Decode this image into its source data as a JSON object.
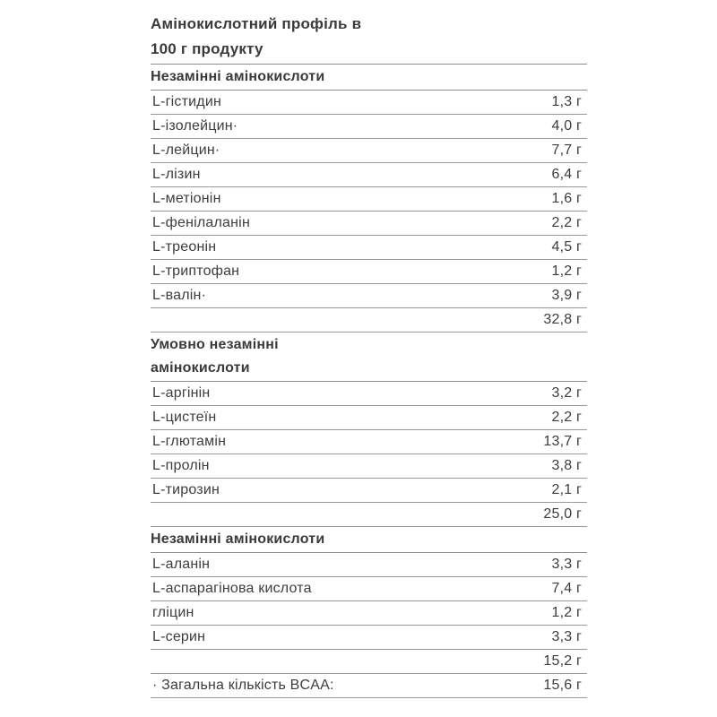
{
  "title": {
    "line1": "Амінокислотний профіль в",
    "line2": "100 г продукту"
  },
  "sections": [
    {
      "header_lines": [
        "Незамінні амінокислоти"
      ],
      "rows": [
        {
          "label": "L-гістидин",
          "value": "1,3 г"
        },
        {
          "label": "L-ізолейцин·",
          "value": "4,0 г"
        },
        {
          "label": "L-лейцин·",
          "value": "7,7 г"
        },
        {
          "label": "L-лізин",
          "value": "6,4 г"
        },
        {
          "label": "L-метіонін",
          "value": "1,6 г"
        },
        {
          "label": "L-фенілаланін",
          "value": "2,2 г"
        },
        {
          "label": "L-треонін",
          "value": "4,5 г"
        },
        {
          "label": "L-триптофан",
          "value": "1,2 г"
        },
        {
          "label": "L-валін·",
          "value": "3,9 г"
        }
      ],
      "total": "32,8 г"
    },
    {
      "header_lines": [
        "Умовно незамінні",
        "амінокислоти"
      ],
      "rows": [
        {
          "label": "L-аргінін",
          "value": "3,2 г"
        },
        {
          "label": "L-цистеїн",
          "value": "2,2 г"
        },
        {
          "label": "L-глютамін",
          "value": "13,7 г"
        },
        {
          "label": "L-пролін",
          "value": "3,8 г"
        },
        {
          "label": "L-тирозин",
          "value": "2,1 г"
        }
      ],
      "total": "25,0 г"
    },
    {
      "header_lines": [
        "Незамінні амінокислоти"
      ],
      "rows": [
        {
          "label": "L-аланін",
          "value": "3,3 г"
        },
        {
          "label": "L-аспарагінова кислота",
          "value": "7,4 г"
        },
        {
          "label": "гліцин",
          "value": "1,2 г"
        },
        {
          "label": "L-серин",
          "value": "3,3 г"
        }
      ],
      "total": "15,2 г"
    }
  ],
  "footer": {
    "label": "· Загальна кількість BCAA:",
    "value": "15,6 г"
  },
  "colors": {
    "text": "#3d3d3d",
    "divider": "#8e8e8e",
    "background": "#ffffff"
  }
}
